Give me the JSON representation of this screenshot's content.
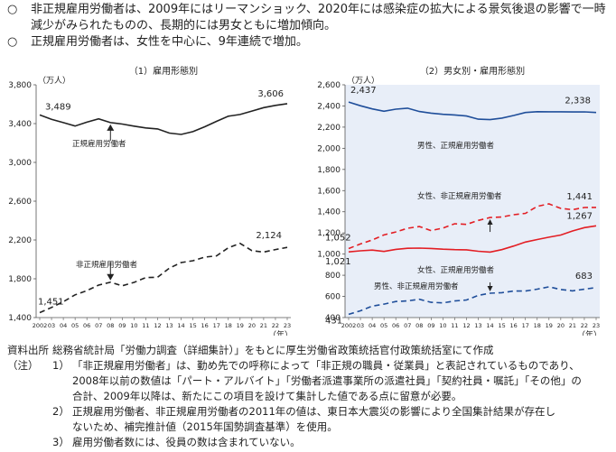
{
  "bullets": [
    {
      "mark": "○",
      "text": "非正規雇用労働者は、2009年にはリーマンショック、2020年には感染症の拡大による景気後退の影響で一時減少がみられたものの、長期的には男女ともに増加傾向。"
    },
    {
      "mark": "○",
      "text": "正規雇用労働者は、女性を中心に、9年連続で増加。"
    }
  ],
  "chart_data": [
    {
      "type": "line",
      "title": "（1）雇用形態別",
      "unit": "（万人）",
      "x": [
        "2002",
        "03",
        "04",
        "05",
        "06",
        "07",
        "08",
        "09",
        "10",
        "11",
        "12",
        "13",
        "14",
        "15",
        "16",
        "17",
        "18",
        "19",
        "20",
        "21",
        "22",
        "23"
      ],
      "x_suffix": "（年）",
      "ylim": [
        1400,
        3800
      ],
      "yticks": [
        "1,400",
        "1,800",
        "2,200",
        "2,600",
        "3,000",
        "3,400",
        "3,800"
      ],
      "series": [
        {
          "name": "正規雇用労働者",
          "style": "solid",
          "color": "#222222",
          "values": [
            3489,
            3444,
            3410,
            3375,
            3415,
            3449,
            3410,
            3395,
            3374,
            3355,
            3345,
            3302,
            3288,
            3317,
            3367,
            3423,
            3476,
            3494,
            3529,
            3565,
            3588,
            3606
          ],
          "first_label": "3,489",
          "last_label": "3,606"
        },
        {
          "name": "非正規雇用労働者",
          "style": "dashed",
          "color": "#222222",
          "values": [
            1451,
            1504,
            1564,
            1634,
            1678,
            1735,
            1765,
            1727,
            1763,
            1812,
            1816,
            1910,
            1967,
            1986,
            2023,
            2036,
            2120,
            2165,
            2090,
            2075,
            2101,
            2124
          ],
          "first_label": "1,451",
          "last_label": "2,124"
        }
      ]
    },
    {
      "type": "line",
      "title": "（2）男女別・雇用形態別",
      "unit": "（万人）",
      "x": [
        "2002",
        "03",
        "04",
        "05",
        "06",
        "07",
        "08",
        "09",
        "10",
        "11",
        "12",
        "13",
        "14",
        "15",
        "16",
        "17",
        "18",
        "19",
        "20",
        "21",
        "22",
        "23"
      ],
      "x_suffix": "（年）",
      "ylim": [
        400,
        2600
      ],
      "yticks": [
        "400",
        "600",
        "800",
        "1,000",
        "1,200",
        "1,400",
        "1,600",
        "1,800",
        "2,000",
        "2,200",
        "2,400",
        "2,600"
      ],
      "series": [
        {
          "name": "男性、正規雇用労働者",
          "style": "solid",
          "color": "#1f4e9a",
          "values": [
            2437,
            2402,
            2372,
            2350,
            2370,
            2379,
            2348,
            2332,
            2321,
            2315,
            2305,
            2275,
            2271,
            2285,
            2310,
            2338,
            2346,
            2345,
            2345,
            2343,
            2344,
            2338
          ],
          "first_label": "2,437",
          "last_label": "2,338"
        },
        {
          "name": "女性、非正規雇用労働者",
          "style": "dashed",
          "color": "#e31e24",
          "values": [
            1052,
            1096,
            1133,
            1181,
            1209,
            1244,
            1260,
            1222,
            1246,
            1287,
            1281,
            1318,
            1346,
            1351,
            1372,
            1385,
            1451,
            1474,
            1432,
            1420,
            1440,
            1441
          ],
          "first_label": "1,052",
          "last_label": "1,441"
        },
        {
          "name": "女性、正規雇用労働者",
          "style": "solid",
          "color": "#e31e24",
          "values": [
            1021,
            1031,
            1038,
            1025,
            1045,
            1055,
            1057,
            1053,
            1046,
            1042,
            1040,
            1027,
            1019,
            1042,
            1076,
            1114,
            1138,
            1160,
            1180,
            1219,
            1250,
            1267
          ],
          "first_label": "1,021",
          "last_label": "1,267"
        },
        {
          "name": "男性、非正規雇用労働者",
          "style": "dashed",
          "color": "#1f4e9a",
          "values": [
            431,
            464,
            508,
            527,
            552,
            558,
            573,
            544,
            539,
            557,
            566,
            610,
            630,
            635,
            651,
            651,
            669,
            691,
            665,
            652,
            669,
            683
          ],
          "first_label": "431",
          "last_label": "683"
        }
      ]
    }
  ],
  "notes": {
    "source_label": "資料出所",
    "source_text": "総務省統計局「労働力調査（詳細集計）」をもとに厚生労働省政策統括官付政策統括室にて作成",
    "notes_label": "（注）",
    "items": [
      {
        "num": "1）",
        "lines": [
          "「非正規雇用労働者」は、勤め先での呼称によって「非正規の職員・従業員」と表記されているものであり、",
          "2008年以前の数値は「パート・アルバイト」「労働者派遣事業所の派遣社員」「契約社員・嘱託」「その他」の",
          "合計、2009年以降は、新たにこの項目を設けて集計した値である点に留意が必要。"
        ]
      },
      {
        "num": "2）",
        "lines": [
          "正規雇用労働者、非正規雇用労働者の2011年の値は、東日本大震災の影響により全国集計結果が存在し",
          "ないため、補完推計値（2015年国勢調査基準）を使用。"
        ]
      },
      {
        "num": "3）",
        "lines": [
          "雇用労働者数には、役員の数は含まれていない。"
        ]
      }
    ]
  }
}
